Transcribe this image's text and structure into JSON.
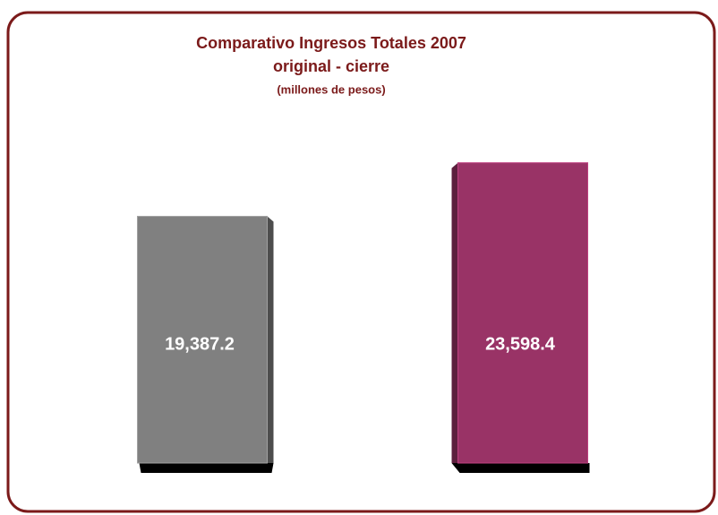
{
  "chart_data": {
    "type": "bar3d",
    "title": "Comparativo Ingresos Totales 2007",
    "subtitle": "original - cierre",
    "unit_note": "(millones de pesos)",
    "categories": [
      null,
      null
    ],
    "values": [
      19387.2,
      23598.4
    ],
    "value_labels": [
      "19,387.2",
      "23,598.4"
    ],
    "colors": [
      "#808080",
      "#993366"
    ],
    "ylim": [
      0,
      24000
    ]
  }
}
